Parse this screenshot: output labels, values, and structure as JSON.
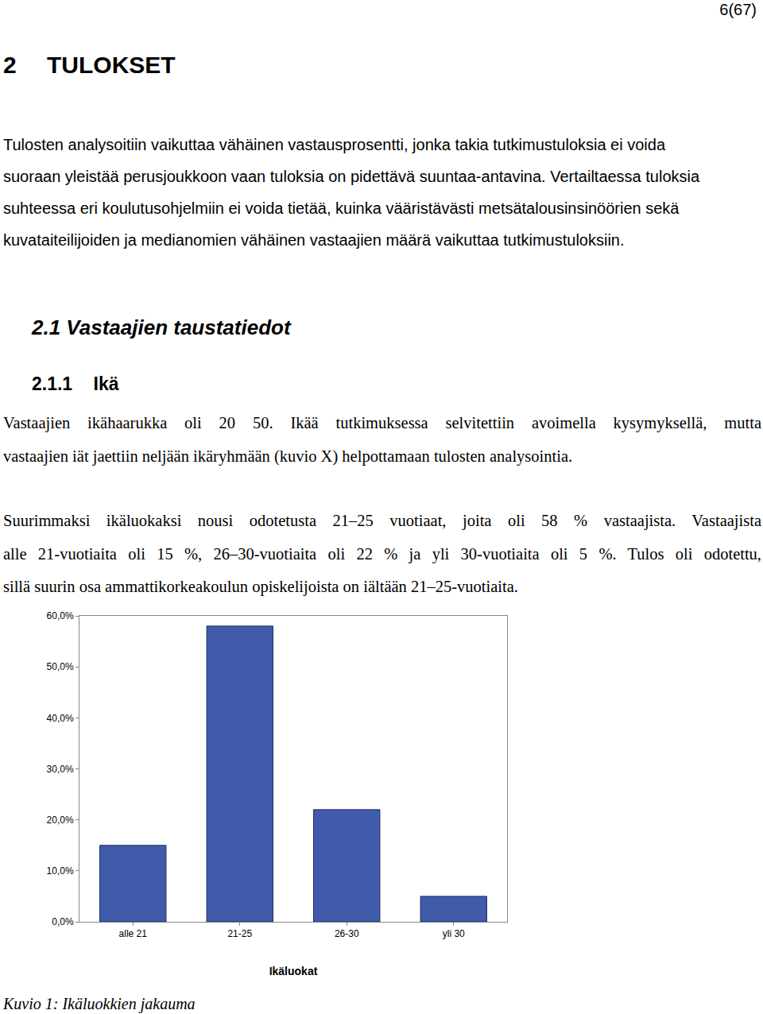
{
  "page_number": "6(67)",
  "heading": "2 TULOKSET",
  "intro_lines": [
    "Tulosten analysoitiin vaikuttaa vähäinen vastausprosentti, jonka takia tutkimustuloksia ei voida",
    "suoraan yleistää perusjoukkoon vaan tuloksia on pidettävä suuntaa-antavina. Vertailtaessa tuloksia",
    "suhteessa eri koulutusohjelmiin ei voida tietää, kuinka vääristävästi metsätalousinsinöörien sekä",
    "kuvataiteilijoiden ja medianomien vähäinen vastaajien määrä vaikuttaa tutkimustuloksiin."
  ],
  "section": "2.1 Vastaajien taustatiedot",
  "subsection": "2.1.1 Ikä",
  "paragraphs": [
    [
      "Vastaajien ikähaarukka oli 20 50. Ikää tutkimuksessa selvitettiin avoimella kysymyksellä, mutta",
      "vastaajien iät jaettiin neljään ikäryhmään (kuvio X) helpottamaan tulosten analysointia."
    ],
    [
      "Suurimmaksi ikäluokaksi nousi odotetusta 21–25 vuotiaat, joita oli 58 % vastaajista. Vastaajista",
      "alle 21-vuotiaita oli 15 %, 26–30-vuotiaita oli 22 % ja yli 30-vuotiaita oli 5 %. Tulos oli odotettu,",
      "sillä suurin osa ammattikorkeakoulun opiskelijoista on iältään 21–25-vuotiaita."
    ]
  ],
  "chart_data": {
    "type": "bar",
    "x_label": "Ikäluokat",
    "categories": [
      "alle 21",
      "21-25",
      "26-30",
      "yli 30"
    ],
    "values": [
      15,
      58,
      22,
      5
    ],
    "color": "#3f5ba9",
    "ylim": [
      0,
      60
    ],
    "yticks": [
      {
        "value": 0,
        "label": "0,0%"
      },
      {
        "value": 10,
        "label": "10,0%"
      },
      {
        "value": 20,
        "label": "20,0%"
      },
      {
        "value": 30,
        "label": "30,0%"
      },
      {
        "value": 40,
        "label": "40,0%"
      },
      {
        "value": 50,
        "label": "50,0%"
      },
      {
        "value": 60,
        "label": "60,0%"
      }
    ],
    "grid": false
  },
  "caption": "Kuvio 1: Ikäluokkien jakauma"
}
